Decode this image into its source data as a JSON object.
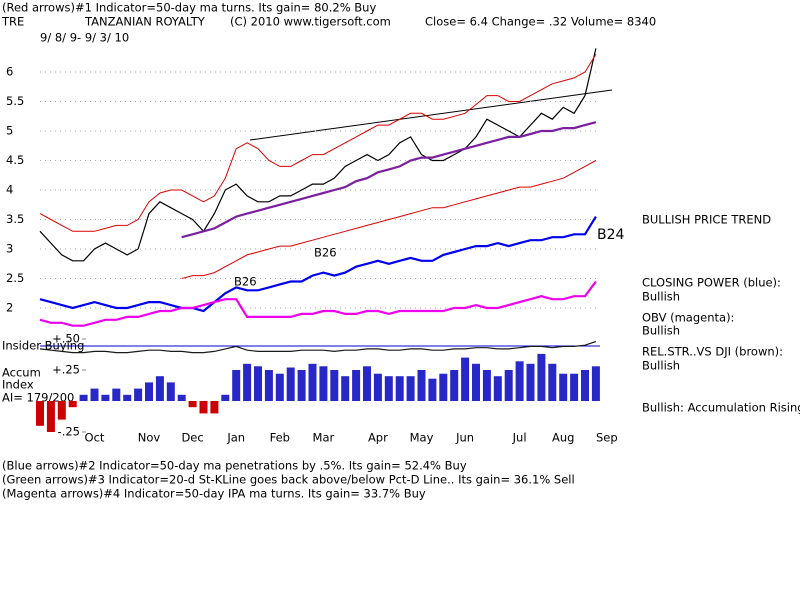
{
  "header": {
    "line1": "(Red arrows)#1 Indicator=50-day ma turns.  Its gain= 80.2% Buy",
    "symbol": "TRE",
    "company": "TANZANIAN ROYALTY",
    "copyright": "(C) 2010 www.tigersoft.com",
    "quote": "Close=  6.4  Change= .32 Volume= 8340",
    "dates": "9/ 8/ 9-  9/ 3/ 10"
  },
  "chart_data": {
    "type": "line",
    "categories": [
      null,
      null,
      null,
      null,
      null,
      "Oct",
      null,
      null,
      null,
      null,
      "Nov",
      null,
      null,
      null,
      "Dec",
      null,
      null,
      null,
      "Jan",
      null,
      null,
      null,
      "Feb",
      null,
      null,
      null,
      "Mar",
      null,
      null,
      null,
      null,
      "Apr",
      null,
      null,
      null,
      "May",
      null,
      null,
      null,
      "Jun",
      null,
      null,
      null,
      null,
      "Jul",
      null,
      null,
      null,
      "Aug",
      null,
      null,
      null,
      "Sep"
    ],
    "ylim": [
      1.6,
      6.5
    ],
    "yticks": [
      2,
      2.5,
      3,
      3.5,
      4,
      4.5,
      5,
      5.5,
      6
    ],
    "grid": true,
    "y2lim": [
      -0.35,
      0.55
    ],
    "y2ticks": [
      {
        "value": 0.5,
        "label": "+.50"
      },
      {
        "value": 0.25,
        "label": "+.25"
      },
      {
        "value": -0.25,
        "label": "-.25"
      }
    ],
    "series": [
      {
        "color": "#000000",
        "values": [
          3.3,
          3.1,
          2.9,
          2.8,
          2.8,
          3.0,
          3.1,
          3.0,
          2.9,
          3.0,
          3.6,
          3.8,
          3.7,
          3.6,
          3.5,
          3.3,
          3.6,
          4.0,
          4.1,
          3.9,
          3.8,
          3.8,
          3.9,
          3.9,
          4.0,
          4.1,
          4.1,
          4.2,
          4.4,
          4.5,
          4.6,
          4.5,
          4.6,
          4.8,
          4.9,
          4.6,
          4.5,
          4.5,
          4.6,
          4.7,
          4.9,
          5.2,
          5.1,
          5.0,
          4.9,
          5.1,
          5.3,
          5.2,
          5.4,
          5.3,
          5.6,
          6.4,
          null
        ]
      },
      {
        "color": "#dd0000",
        "values": [
          3.6,
          3.5,
          3.4,
          3.3,
          3.3,
          3.3,
          3.35,
          3.4,
          3.4,
          3.5,
          3.8,
          3.95,
          4.0,
          4.0,
          3.9,
          3.8,
          3.9,
          4.2,
          4.7,
          4.8,
          4.7,
          4.5,
          4.4,
          4.4,
          4.5,
          4.6,
          4.6,
          4.7,
          4.8,
          4.9,
          5.0,
          5.1,
          5.1,
          5.2,
          5.3,
          5.3,
          5.2,
          5.2,
          5.25,
          5.3,
          5.45,
          5.6,
          5.6,
          5.5,
          5.5,
          5.6,
          5.7,
          5.8,
          5.85,
          5.9,
          6.0,
          6.3,
          null
        ]
      },
      {
        "color": "#dd0000",
        "values": [
          null,
          null,
          null,
          null,
          null,
          null,
          null,
          null,
          null,
          null,
          null,
          null,
          null,
          2.5,
          2.55,
          2.55,
          2.6,
          2.7,
          2.8,
          2.9,
          2.95,
          3.0,
          3.05,
          3.05,
          3.1,
          3.15,
          3.2,
          3.25,
          3.3,
          3.35,
          3.4,
          3.45,
          3.5,
          3.55,
          3.6,
          3.65,
          3.7,
          3.7,
          3.75,
          3.8,
          3.85,
          3.9,
          3.95,
          4.0,
          4.05,
          4.05,
          4.1,
          4.15,
          4.2,
          4.3,
          4.4,
          4.5,
          null
        ]
      },
      {
        "color": "#7a1fa0",
        "values": [
          null,
          null,
          null,
          null,
          null,
          null,
          null,
          null,
          null,
          null,
          null,
          null,
          null,
          3.2,
          3.25,
          3.3,
          3.35,
          3.45,
          3.55,
          3.6,
          3.65,
          3.7,
          3.75,
          3.8,
          3.85,
          3.9,
          3.95,
          4.0,
          4.05,
          4.15,
          4.2,
          4.3,
          4.35,
          4.4,
          4.5,
          4.55,
          4.55,
          4.6,
          4.65,
          4.7,
          4.75,
          4.8,
          4.85,
          4.9,
          4.9,
          4.95,
          5.0,
          5.0,
          5.05,
          5.05,
          5.1,
          5.15,
          null
        ]
      },
      {
        "color": "#0000ee",
        "values": [
          2.15,
          2.1,
          2.05,
          2.0,
          2.05,
          2.1,
          2.05,
          2.0,
          2.0,
          2.05,
          2.1,
          2.1,
          2.05,
          2.0,
          2.0,
          1.95,
          2.1,
          2.25,
          2.35,
          2.3,
          2.3,
          2.35,
          2.4,
          2.45,
          2.45,
          2.55,
          2.6,
          2.55,
          2.6,
          2.7,
          2.75,
          2.8,
          2.75,
          2.8,
          2.85,
          2.8,
          2.8,
          2.9,
          2.95,
          3.0,
          3.05,
          3.05,
          3.1,
          3.05,
          3.1,
          3.15,
          3.15,
          3.2,
          3.2,
          3.25,
          3.25,
          3.55,
          null
        ]
      },
      {
        "color": "#ee00ee",
        "values": [
          1.8,
          1.75,
          1.75,
          1.7,
          1.7,
          1.75,
          1.8,
          1.8,
          1.85,
          1.85,
          1.9,
          1.95,
          1.95,
          2.0,
          2.0,
          2.05,
          2.1,
          2.15,
          2.15,
          1.85,
          1.85,
          1.85,
          1.85,
          1.85,
          1.9,
          1.9,
          1.95,
          1.95,
          1.9,
          1.9,
          1.95,
          1.95,
          1.9,
          1.95,
          1.95,
          1.95,
          1.95,
          1.95,
          2.0,
          2.0,
          2.05,
          2.0,
          2.0,
          2.05,
          2.1,
          2.15,
          2.2,
          2.15,
          2.15,
          2.2,
          2.2,
          2.45,
          null
        ]
      },
      {
        "color": "#1a1a1a",
        "axis": "y2",
        "values": [
          0.42,
          0.41,
          0.4,
          0.39,
          0.39,
          0.4,
          0.4,
          0.39,
          0.39,
          0.4,
          0.41,
          0.41,
          0.4,
          0.4,
          0.39,
          0.39,
          0.4,
          0.42,
          0.44,
          0.41,
          0.4,
          0.4,
          0.4,
          0.4,
          0.41,
          0.41,
          0.41,
          0.4,
          0.41,
          0.41,
          0.42,
          0.42,
          0.41,
          0.41,
          0.42,
          0.42,
          0.41,
          0.41,
          0.42,
          0.42,
          0.43,
          0.43,
          0.42,
          0.42,
          0.43,
          0.44,
          0.44,
          0.43,
          0.44,
          0.44,
          0.45,
          0.48,
          null
        ]
      },
      {
        "type": "bar",
        "color": "#2828c8",
        "negative_color": "#cc0000",
        "axis": "y2",
        "values": [
          -0.2,
          -0.25,
          -0.15,
          -0.05,
          0.05,
          0.1,
          0.05,
          0.1,
          0.05,
          0.1,
          0.15,
          0.2,
          0.15,
          0.05,
          -0.05,
          -0.1,
          -0.1,
          0.05,
          0.25,
          0.3,
          0.28,
          0.25,
          0.22,
          0.27,
          0.25,
          0.3,
          0.28,
          0.25,
          0.2,
          0.25,
          0.28,
          0.22,
          0.2,
          0.2,
          0.2,
          0.25,
          0.18,
          0.22,
          0.25,
          0.35,
          0.3,
          0.25,
          0.2,
          0.25,
          0.32,
          0.3,
          0.38,
          0.3,
          0.22,
          0.22,
          0.25,
          0.28,
          null
        ]
      }
    ],
    "annotations": [
      "B24",
      "B26",
      "B26"
    ]
  },
  "labels": {
    "insider": "Insider Buying",
    "accum": "Accum",
    "index": "Index",
    "ai": "AI= 179/200",
    "trend": "BULLISH PRICE TREND",
    "cp": "CLOSING POWER (blue):",
    "cp_state": "Bullish",
    "obv": "OBV (magenta):",
    "obv_state": "Bullish",
    "rs": "REL.STR..VS DJI (brown):",
    "rs_state": "Bullish",
    "accum_state": "Bullish: Accumulation Rising"
  },
  "footer": [
    "(Blue arrows)#2 Indicator=50-day ma penetrations by .5%.  Its gain= 52.4% Buy",
    "(Green arrows)#3 Indicator=20-d St-KLine goes back above/below Pct-D Line..  Its gain= 36.1% Sell",
    "(Magenta arrows)#4 Indicator=50-day IPA ma turns.  Its gain= 33.7% Buy"
  ]
}
